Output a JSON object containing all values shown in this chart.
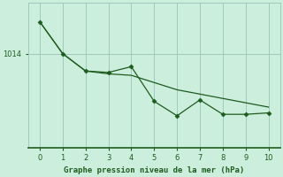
{
  "background_color": "#cceedd",
  "line1_x": [
    0,
    1,
    2,
    3,
    4,
    5,
    6,
    7,
    8,
    9,
    10
  ],
  "line1_y": [
    1016.2,
    1014.0,
    1012.8,
    1012.6,
    1012.5,
    1012.0,
    1011.5,
    1011.2,
    1010.9,
    1010.6,
    1010.3
  ],
  "line2_x": [
    0,
    1,
    2,
    3,
    4,
    5,
    6,
    7,
    8,
    9,
    10
  ],
  "line2_y": [
    1016.2,
    1014.0,
    1012.8,
    1012.7,
    1013.1,
    1010.7,
    1009.7,
    1010.8,
    1009.8,
    1009.8,
    1009.9
  ],
  "line_color": "#1e5c1e",
  "marker_color": "#1e5c1e",
  "xlabel": "Graphe pression niveau de la mer (hPa)",
  "xlim": [
    -0.5,
    10.5
  ],
  "ylim": [
    1007.5,
    1017.5
  ],
  "ytick_values": [
    1014
  ],
  "ytick_labels": [
    "1014"
  ],
  "xticks": [
    0,
    1,
    2,
    3,
    4,
    5,
    6,
    7,
    8,
    9,
    10
  ],
  "grid_color": "#a0c8bc",
  "grid_linewidth": 0.7
}
